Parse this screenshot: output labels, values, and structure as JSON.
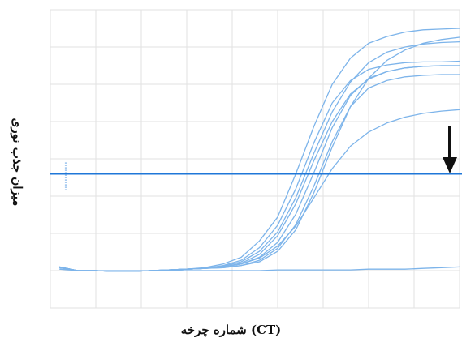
{
  "chart_data": {
    "type": "line",
    "title": "",
    "xlabel": "شماره چرخه (CT)",
    "ylabel": "میزان جذب نوری",
    "grid": true,
    "legend": "none",
    "xlim": [
      0,
      45
    ],
    "ylim": [
      -0.5,
      3.5
    ],
    "threshold": 1.3,
    "series_color": "#7db4ea",
    "threshold_color": "#1f77d8",
    "annotation": {
      "type": "arrow",
      "direction": "down",
      "color": "#111111"
    },
    "series": [
      {
        "x": [
          1,
          3,
          5,
          7,
          9,
          11,
          13,
          15,
          17,
          19,
          21,
          23,
          25,
          27,
          29,
          31,
          33,
          35,
          37,
          39,
          41,
          43,
          45
        ],
        "y": [
          0.05,
          -0.0,
          0.0,
          -0.01,
          -0.01,
          0.0,
          0.01,
          0.02,
          0.04,
          0.09,
          0.18,
          0.4,
          0.72,
          1.3,
          1.94,
          2.5,
          2.85,
          3.05,
          3.14,
          3.2,
          3.23,
          3.24,
          3.25
        ]
      },
      {
        "x": [
          1,
          3,
          5,
          7,
          9,
          11,
          13,
          15,
          17,
          19,
          21,
          23,
          25,
          27,
          29,
          31,
          33,
          35,
          37,
          39,
          41,
          43,
          45
        ],
        "y": [
          0.05,
          -0.0,
          0.0,
          -0.01,
          -0.01,
          0.0,
          0.01,
          0.02,
          0.03,
          0.07,
          0.14,
          0.31,
          0.61,
          1.1,
          1.72,
          2.25,
          2.55,
          2.7,
          2.76,
          2.79,
          2.8,
          2.8,
          2.81
        ]
      },
      {
        "x": [
          1,
          3,
          5,
          7,
          9,
          11,
          13,
          15,
          17,
          19,
          21,
          23,
          25,
          27,
          29,
          31,
          33,
          35,
          37,
          39,
          41,
          43,
          45
        ],
        "y": [
          0.04,
          -0.0,
          0.0,
          -0.01,
          -0.01,
          0.0,
          0.01,
          0.02,
          0.03,
          0.06,
          0.12,
          0.26,
          0.52,
          0.98,
          1.58,
          2.13,
          2.53,
          2.79,
          2.93,
          3.0,
          3.04,
          3.06,
          3.07
        ]
      },
      {
        "x": [
          1,
          3,
          5,
          7,
          9,
          11,
          13,
          15,
          17,
          19,
          21,
          23,
          25,
          27,
          29,
          31,
          33,
          35,
          37,
          39,
          41,
          43,
          45
        ],
        "y": [
          0.05,
          -0.0,
          0.0,
          -0.01,
          -0.01,
          0.0,
          0.01,
          0.02,
          0.03,
          0.05,
          0.1,
          0.22,
          0.47,
          0.9,
          1.48,
          2.0,
          2.37,
          2.57,
          2.67,
          2.72,
          2.74,
          2.75,
          2.75
        ]
      },
      {
        "x": [
          1,
          3,
          5,
          7,
          9,
          11,
          13,
          15,
          17,
          19,
          21,
          23,
          25,
          27,
          29,
          31,
          33,
          35,
          37,
          39,
          41,
          43,
          45
        ],
        "y": [
          0.04,
          -0.0,
          0.0,
          -0.01,
          -0.01,
          0.0,
          0.01,
          0.02,
          0.03,
          0.05,
          0.09,
          0.18,
          0.38,
          0.76,
          1.32,
          1.92,
          2.35,
          2.58,
          2.67,
          2.72,
          2.74,
          2.75,
          2.75
        ]
      },
      {
        "x": [
          1,
          3,
          5,
          7,
          9,
          11,
          13,
          15,
          17,
          19,
          21,
          23,
          25,
          27,
          29,
          31,
          33,
          35,
          37,
          39,
          41,
          43,
          45
        ],
        "y": [
          0.05,
          -0.0,
          0.0,
          -0.01,
          -0.01,
          0.0,
          0.01,
          0.02,
          0.03,
          0.04,
          0.07,
          0.14,
          0.3,
          0.62,
          1.14,
          1.73,
          2.2,
          2.45,
          2.55,
          2.6,
          2.62,
          2.63,
          2.63
        ]
      },
      {
        "x": [
          1,
          3,
          5,
          7,
          9,
          11,
          13,
          15,
          17,
          19,
          21,
          23,
          25,
          27,
          29,
          31,
          33,
          35,
          37,
          39,
          41,
          43,
          45
        ],
        "y": [
          0.04,
          -0.0,
          0.0,
          -0.01,
          -0.01,
          0.0,
          0.01,
          0.02,
          0.03,
          0.04,
          0.07,
          0.12,
          0.26,
          0.55,
          1.05,
          1.66,
          2.2,
          2.58,
          2.82,
          2.96,
          3.05,
          3.1,
          3.13
        ]
      },
      {
        "x": [
          1,
          3,
          5,
          7,
          9,
          11,
          13,
          15,
          17,
          19,
          21,
          23,
          25,
          27,
          29,
          31,
          33,
          35,
          37,
          39,
          41,
          43,
          45
        ],
        "y": [
          0.05,
          -0.0,
          0.0,
          -0.01,
          -0.01,
          0.0,
          0.01,
          0.02,
          0.03,
          0.05,
          0.09,
          0.17,
          0.33,
          0.6,
          0.98,
          1.37,
          1.67,
          1.86,
          1.98,
          2.06,
          2.11,
          2.14,
          2.16
        ]
      },
      {
        "x": [
          1,
          3,
          5,
          7,
          9,
          11,
          13,
          15,
          17,
          19,
          21,
          23,
          25,
          27,
          29,
          31,
          33,
          35,
          37,
          39,
          41,
          43,
          45
        ],
        "y": [
          0.02,
          0.0,
          0.0,
          0.0,
          0.0,
          0.0,
          0.0,
          0.0,
          0.0,
          0.0,
          0.0,
          0.0,
          0.01,
          0.01,
          0.01,
          0.01,
          0.01,
          0.02,
          0.02,
          0.02,
          0.03,
          0.04,
          0.05
        ]
      }
    ]
  }
}
